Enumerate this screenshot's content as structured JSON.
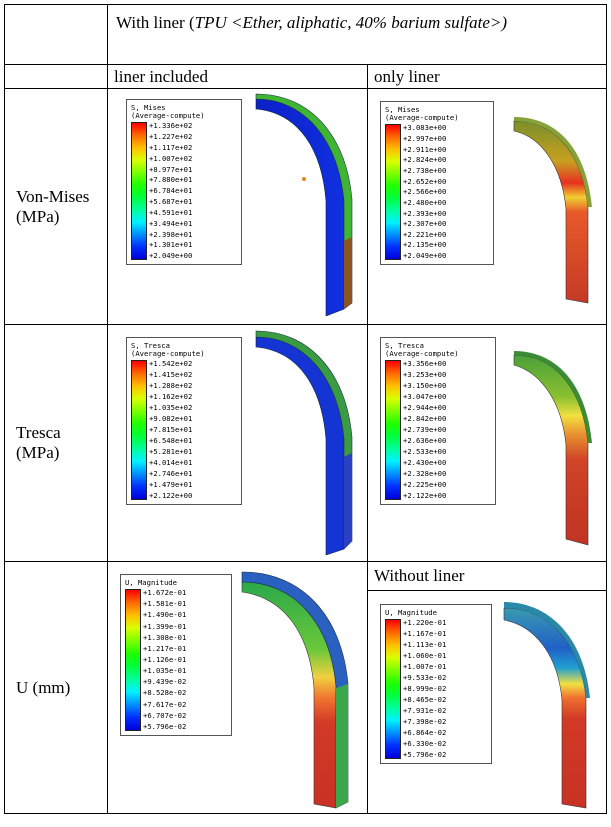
{
  "header": {
    "prefix": "With liner (",
    "italic": "TPU <Ether, aliphatic, 40% barium sulfate>)"
  },
  "columns": {
    "liner_included": "liner included",
    "only_liner": "only liner",
    "without_liner": "Without liner"
  },
  "rows": [
    {
      "label": "Von-Mises (MPa)"
    },
    {
      "label": "Tresca (MPa)"
    },
    {
      "label": "U (mm)"
    }
  ],
  "legends": {
    "mises_included": {
      "title1": "S, Mises",
      "title2": "(Average-compute)",
      "values": [
        "+1.336e+02",
        "+1.227e+02",
        "+1.117e+02",
        "+1.007e+02",
        "+8.977e+01",
        "+7.880e+01",
        "+6.784e+01",
        "+5.687e+01",
        "+4.591e+01",
        "+3.494e+01",
        "+2.398e+01",
        "+1.301e+01",
        "+2.049e+00"
      ]
    },
    "mises_only": {
      "title1": "S, Mises",
      "title2": "(Average-compute)",
      "values": [
        "+3.083e+00",
        "+2.997e+00",
        "+2.911e+00",
        "+2.824e+00",
        "+2.738e+00",
        "+2.652e+00",
        "+2.566e+00",
        "+2.480e+00",
        "+2.393e+00",
        "+2.307e+00",
        "+2.221e+00",
        "+2.135e+00",
        "+2.049e+00"
      ]
    },
    "tresca_included": {
      "title1": "S, Tresca",
      "title2": "(Average-compute)",
      "values": [
        "+1.542e+02",
        "+1.415e+02",
        "+1.288e+02",
        "+1.162e+02",
        "+1.035e+02",
        "+9.082e+01",
        "+7.815e+01",
        "+6.548e+01",
        "+5.281e+01",
        "+4.014e+01",
        "+2.746e+01",
        "+1.479e+01",
        "+2.122e+00"
      ]
    },
    "tresca_only": {
      "title1": "S, Tresca",
      "title2": "(Average-compute)",
      "values": [
        "+3.356e+00",
        "+3.253e+00",
        "+3.150e+00",
        "+3.047e+00",
        "+2.944e+00",
        "+2.842e+00",
        "+2.739e+00",
        "+2.636e+00",
        "+2.533e+00",
        "+2.430e+00",
        "+2.328e+00",
        "+2.225e+00",
        "+2.122e+00"
      ]
    },
    "u_included": {
      "title1": "U, Magnitude",
      "title2": "",
      "values": [
        "+1.672e-01",
        "+1.581e-01",
        "+1.490e-01",
        "+1.399e-01",
        "+1.308e-01",
        "+1.217e-01",
        "+1.126e-01",
        "+1.035e-01",
        "+9.439e-02",
        "+8.528e-02",
        "+7.617e-02",
        "+6.707e-02",
        "+5.796e-02"
      ]
    },
    "u_without": {
      "title1": "U, Magnitude",
      "title2": "",
      "values": [
        "+1.220e-01",
        "+1.167e-01",
        "+1.113e-01",
        "+1.060e-01",
        "+1.007e-01",
        "+9.533e-02",
        "+8.999e-02",
        "+8.465e-02",
        "+7.931e-02",
        "+7.398e-02",
        "+6.864e-02",
        "+6.330e-02",
        "+5.796e-02"
      ]
    }
  },
  "colors": {
    "spectrum": "#ff0000,#ff6a00,#ffc000,#d8ff00,#7cff00,#1fff00,#00ff3c,#00ff9c,#00f2ff,#0090ff,#0030ff,#0000d8"
  }
}
